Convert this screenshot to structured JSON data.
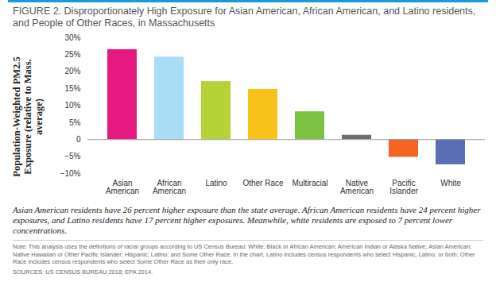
{
  "chart_data": {
    "type": "bar",
    "title": "FIGURE 2. Disproportionately High Exposure for Asian American, African American, and Latino residents, and People of Other Races, in Massachusetts",
    "ylabel": "Population-Weighted PM2.5 Exposure (relative to Mass. average)",
    "categories": [
      "Asian American",
      "African American",
      "Latino",
      "Other Race",
      "Multiracial",
      "Native American",
      "Pacific Islander",
      "White"
    ],
    "values": [
      26.5,
      24.3,
      17.1,
      14.8,
      8.2,
      1.3,
      -5.2,
      -7.4
    ],
    "colors": [
      "#e5197f",
      "#a9dcf5",
      "#b5d334",
      "#f9c21a",
      "#7dc242",
      "#6d6e71",
      "#f26522",
      "#5a6db5"
    ],
    "ylim": [
      -10,
      30
    ],
    "yticks": [
      {
        "value": -10,
        "label": "−10%"
      },
      {
        "value": -5,
        "label": "−5%"
      },
      0,
      {
        "value": 5,
        "label": "5%"
      },
      {
        "value": 10,
        "label": "10%"
      },
      {
        "value": 15,
        "label": "15%"
      },
      {
        "value": 20,
        "label": "20%"
      },
      {
        "value": 25,
        "label": "25%"
      },
      {
        "value": 30,
        "label": "30%"
      }
    ],
    "grid": false,
    "caption": "Asian American residents have 26 percent higher exposure than the state average. African American residents have 24 percent higher exposures, and Latino residents have 17 percent higher exposures. Meanwhile, white residents are exposed to 7 percent lower concentrations.",
    "note": "Note: This analysis uses the definitions of racial groups according to US Census Bureau: White; Black or African American; American Indian or Alaska Native; Asian American; Native Hawaiian or Other Pacific Islander; Hispanic; Latino; and Some Other Race. In the chart, Latino includes census respondents who select Hispanic, Latino, or both; Other Race includes census respondents who select Some Other Race as their only race.",
    "source": "SOURCES: US CENSUS BUREAU 2018; EPA 2014."
  }
}
